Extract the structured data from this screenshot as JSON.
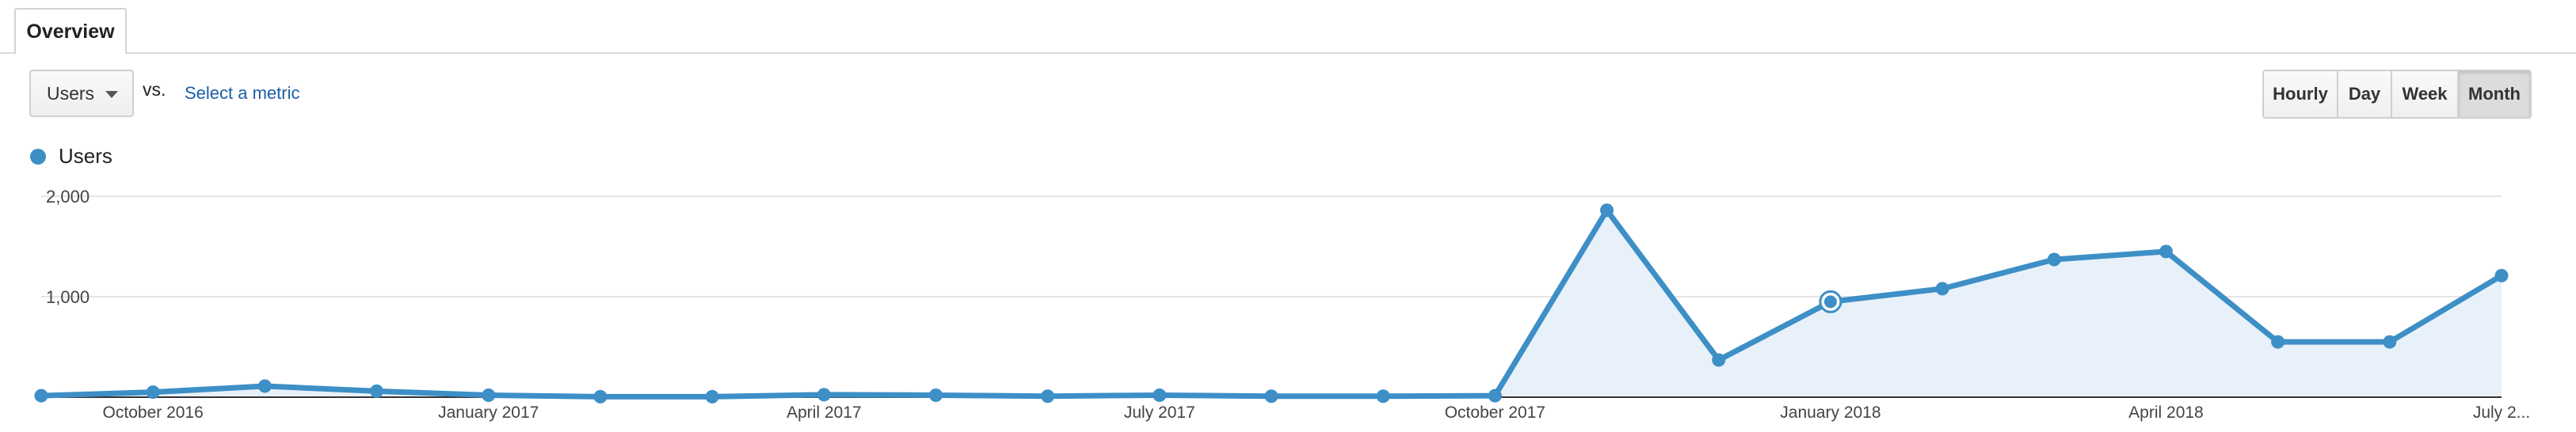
{
  "tabs": [
    {
      "label": "Overview"
    }
  ],
  "controls": {
    "metric_select": "Users",
    "vs_label": "vs.",
    "select_metric_link": "Select a metric",
    "intervals": [
      {
        "label": "Hourly",
        "active": false
      },
      {
        "label": "Day",
        "active": false
      },
      {
        "label": "Week",
        "active": false
      },
      {
        "label": "Month",
        "active": true
      }
    ]
  },
  "colors": {
    "series": "#3d8fc6",
    "area_fill": "#e8f1f9",
    "gridline": "#e5e5e5",
    "axis": "#333333",
    "link": "#1a5fa8"
  },
  "chart_data": {
    "type": "area",
    "ylim": [
      0,
      2000
    ],
    "y_ticks": [
      {
        "value": 1000,
        "label": "1,000"
      },
      {
        "value": 2000,
        "label": "2,000"
      }
    ],
    "x_ticks": [
      {
        "index": 1,
        "label": "October 2016"
      },
      {
        "index": 4,
        "label": "January 2017"
      },
      {
        "index": 7,
        "label": "April 2017"
      },
      {
        "index": 10,
        "label": "July 2017"
      },
      {
        "index": 13,
        "label": "October 2017"
      },
      {
        "index": 16,
        "label": "January 2018"
      },
      {
        "index": 19,
        "label": "April 2018"
      },
      {
        "index": 22,
        "label": "July 2..."
      }
    ],
    "series": [
      {
        "name": "Users",
        "values": [
          15,
          50,
          110,
          60,
          20,
          5,
          5,
          25,
          20,
          10,
          20,
          10,
          10,
          15,
          1860,
          370,
          950,
          1080,
          1370,
          1450,
          550,
          550,
          1210
        ],
        "highlight_index": 16
      }
    ]
  }
}
